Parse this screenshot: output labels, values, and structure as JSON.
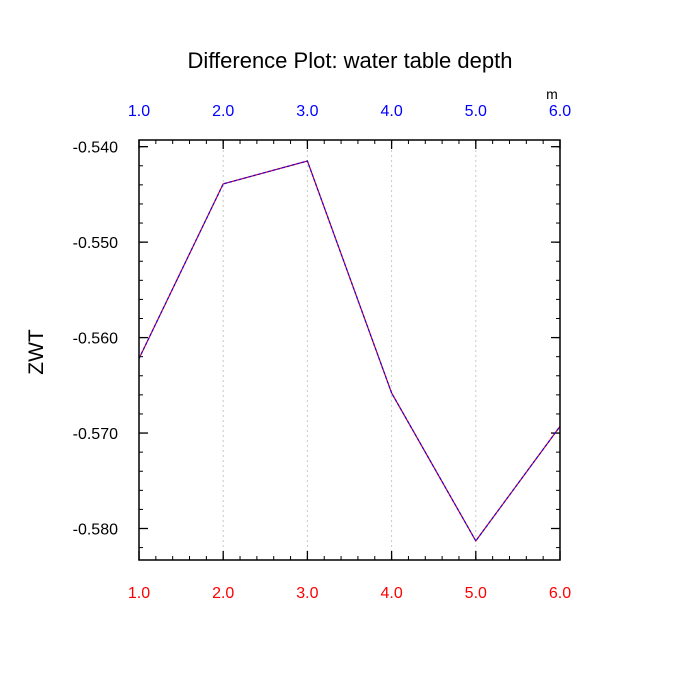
{
  "chart_data": {
    "type": "line",
    "title": "Difference Plot: water table depth",
    "xlabel": "",
    "ylabel": "ZWT",
    "top_axis_unit": "m",
    "x": [
      1.0,
      2.0,
      3.0,
      4.0,
      5.0,
      6.0
    ],
    "series": [
      {
        "values": [
          -0.5622,
          -0.5439,
          -0.5415,
          -0.5658,
          -0.5813,
          -0.5693
        ],
        "color": "#5a1aa0",
        "style": "dashed"
      }
    ],
    "xlim": [
      1.0,
      6.0
    ],
    "ylim": [
      -0.5833,
      -0.5393
    ],
    "x_ticks": [
      1.0,
      2.0,
      3.0,
      4.0,
      5.0,
      6.0
    ],
    "x_tick_labels_bottom": [
      "1.0",
      "2.0",
      "3.0",
      "4.0",
      "5.0",
      "6.0"
    ],
    "x_tick_labels_top": [
      "1.0",
      "2.0",
      "3.0",
      "4.0",
      "5.0",
      "6.0"
    ],
    "y_ticks": [
      -0.54,
      -0.55,
      -0.56,
      -0.57,
      -0.58
    ],
    "y_tick_labels": [
      "-0.540",
      "-0.550",
      "-0.560",
      "-0.570",
      "-0.580"
    ],
    "x_minor_step": 0.2,
    "y_minor_step": 0.002,
    "vertical_grid": "dotted at major x ticks",
    "colors": {
      "bottom_tick_labels": "#ff0000",
      "top_tick_labels": "#0000ff",
      "grid": "#c8c8c8",
      "axes": "#000000"
    }
  }
}
